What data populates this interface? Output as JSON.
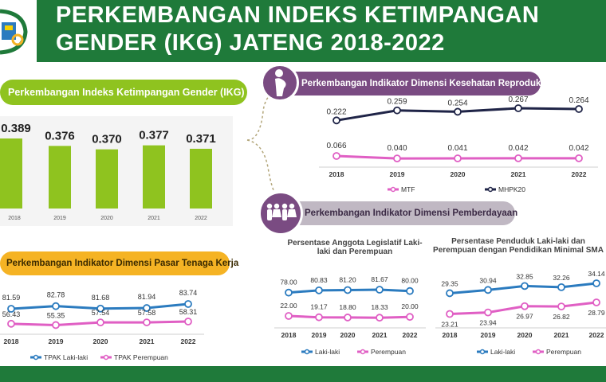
{
  "header": {
    "title_line1": "PERKEMBANGAN INDEKS KETIMPANGAN",
    "title_line2": "GENDER (IKG) JATENG 2018-2022"
  },
  "sections": {
    "ikg": "Perkembangan Indeks Ketimpangan Gender (IKG)",
    "kesehatan": "Perkembangan Indikator Dimensi Kesehatan Reproduksi",
    "pemberdayaan": "Perkembangan Indikator Dimensi Pemberdayaan",
    "pasar_kerja": "Perkembangan Indikator Dimensi Pasar Tenaga Kerja"
  },
  "subtitles": {
    "legislatif": "Persentase Anggota Legislatif Laki-laki dan Perempuan",
    "sma": "Persentase Penduduk Laki-laki dan Perempuan dengan Pendidikan Minimal SMA"
  },
  "colors": {
    "header_green": "#1f7a3a",
    "ikg_green": "#8fc31f",
    "purple": "#7a4b82",
    "orange": "#f5b324",
    "male_blue": "#2b7bbf",
    "female_pink": "#e05fc4",
    "mhpk_navy": "#1f2447"
  },
  "chart_data": [
    {
      "id": "ikg",
      "type": "bar",
      "categories": [
        "2018",
        "2019",
        "2020",
        "2021",
        "2022"
      ],
      "values": [
        0.389,
        0.376,
        0.37,
        0.377,
        0.371
      ],
      "labels": [
        "0.389",
        "0.376",
        "0.370",
        "0.377",
        "0.371"
      ],
      "color": "#8fc31f"
    },
    {
      "id": "kesehatan",
      "type": "line",
      "categories": [
        "2018",
        "2019",
        "2020",
        "2021",
        "2022"
      ],
      "series": [
        {
          "name": "MHPK20",
          "values": [
            0.222,
            0.259,
            0.254,
            0.267,
            0.264
          ],
          "labels": [
            "0.222",
            "0.259",
            "0.254",
            "0.267",
            "0.264"
          ],
          "color": "#1f2447"
        },
        {
          "name": "MTF",
          "values": [
            0.066,
            0.04,
            0.041,
            0.042,
            0.042
          ],
          "labels": [
            "0.066",
            "0.040",
            "0.041",
            "0.042",
            "0.042"
          ],
          "color": "#e05fc4"
        }
      ],
      "legend": [
        "MTF",
        "MHPK20"
      ]
    },
    {
      "id": "pasar_kerja",
      "type": "line",
      "categories": [
        "2018",
        "2019",
        "2020",
        "2021",
        "2022"
      ],
      "series": [
        {
          "name": "TPAK Laki-laki",
          "values": [
            81.59,
            82.78,
            81.68,
            81.94,
            83.74
          ],
          "labels": [
            "81.59",
            "82.78",
            "81.68",
            "81.94",
            "83.74"
          ],
          "color": "#2b7bbf"
        },
        {
          "name": "TPAK Perempuan",
          "values": [
            56.43,
            55.35,
            57.54,
            57.58,
            58.31
          ],
          "labels": [
            "56.43",
            "55.35",
            "57.54",
            "57.58",
            "58.31"
          ],
          "color": "#e05fc4"
        }
      ],
      "legend": [
        "TPAK Laki-laki",
        "TPAK Perempuan"
      ]
    },
    {
      "id": "legislatif",
      "type": "line",
      "categories": [
        "2018",
        "2019",
        "2020",
        "2021",
        "2022"
      ],
      "series": [
        {
          "name": "Laki-laki",
          "values": [
            78.0,
            80.83,
            81.2,
            81.67,
            80.0
          ],
          "labels": [
            "78.00",
            "80.83",
            "81.20",
            "81.67",
            "80.00"
          ],
          "color": "#2b7bbf"
        },
        {
          "name": "Perempuan",
          "values": [
            22.0,
            19.17,
            18.8,
            18.33,
            20.0
          ],
          "labels": [
            "22.00",
            "19.17",
            "18.80",
            "18.33",
            "20.00"
          ],
          "color": "#e05fc4"
        }
      ],
      "legend": [
        "Laki-laki",
        "Perempuan"
      ]
    },
    {
      "id": "sma",
      "type": "line",
      "categories": [
        "2018",
        "2019",
        "2020",
        "2021",
        "2022"
      ],
      "series": [
        {
          "name": "Laki-laki",
          "values": [
            29.35,
            30.94,
            32.85,
            32.26,
            34.14
          ],
          "labels": [
            "29.35",
            "30.94",
            "32.85",
            "32.26",
            "34.14"
          ],
          "color": "#2b7bbf"
        },
        {
          "name": "Perempuan",
          "values": [
            23.21,
            23.94,
            26.97,
            26.82,
            28.79
          ],
          "labels": [
            "23.21",
            "23.94",
            "26.97",
            "26.82",
            "28.79"
          ],
          "color": "#e05fc4"
        }
      ],
      "legend": [
        "Laki-laki",
        "Perempuan"
      ]
    }
  ]
}
